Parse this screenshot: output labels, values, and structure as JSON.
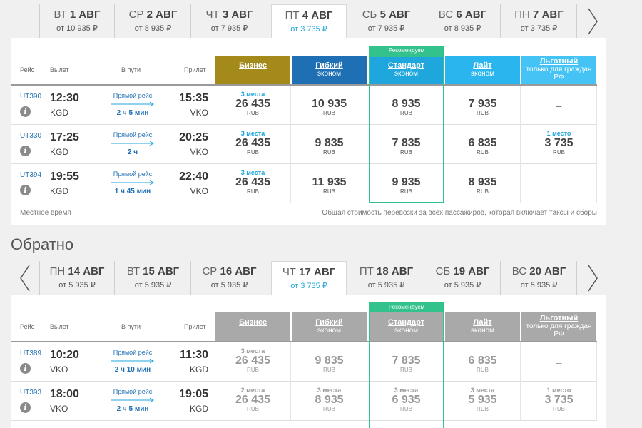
{
  "outbound": {
    "dates": [
      {
        "dow": "ВТ",
        "day": "1",
        "month": "АВГ",
        "price": "от 10 935 ₽"
      },
      {
        "dow": "СР",
        "day": "2",
        "month": "АВГ",
        "price": "от 8 935 ₽"
      },
      {
        "dow": "ЧТ",
        "day": "3",
        "month": "АВГ",
        "price": "от 7 935 ₽"
      },
      {
        "dow": "ПТ",
        "day": "4",
        "month": "АВГ",
        "price": "от 3 735 ₽"
      },
      {
        "dow": "СБ",
        "day": "5",
        "month": "АВГ",
        "price": "от 7 935 ₽"
      },
      {
        "dow": "ВС",
        "day": "6",
        "month": "АВГ",
        "price": "от 8 935 ₽"
      },
      {
        "dow": "ПН",
        "day": "7",
        "month": "АВГ",
        "price": "от 3 735 ₽"
      }
    ],
    "columns": {
      "flight": "Рейс",
      "departure": "Вылет",
      "enroute": "В пути",
      "arrival": "Прилет"
    },
    "fares": [
      {
        "name": "Бизнес",
        "sub": ""
      },
      {
        "name": "Гибкий",
        "sub": "эконом"
      },
      {
        "name": "Стандарт",
        "sub": "эконом"
      },
      {
        "name": "Лайт",
        "sub": "эконом"
      },
      {
        "name": "Льготный",
        "sub": "только для граждан РФ"
      }
    ],
    "recommended": "Рекомендуем",
    "flights": [
      {
        "no": "UT390",
        "dep_time": "12:30",
        "dep_code": "KGD",
        "direct": "Прямой рейс",
        "duration": "2 ч 5 мин",
        "arr_time": "15:35",
        "arr_code": "VKO",
        "prices": [
          {
            "seats": "3 места",
            "price": "26 435",
            "cur": "RUB"
          },
          {
            "seats": "",
            "price": "10 935",
            "cur": "RUB"
          },
          {
            "seats": "",
            "price": "8 935",
            "cur": "RUB"
          },
          {
            "seats": "",
            "price": "7 935",
            "cur": "RUB"
          },
          {
            "seats": "",
            "price": "–",
            "cur": ""
          }
        ]
      },
      {
        "no": "UT330",
        "dep_time": "17:25",
        "dep_code": "KGD",
        "direct": "Прямой рейс",
        "duration": "2 ч",
        "arr_time": "20:25",
        "arr_code": "VKO",
        "prices": [
          {
            "seats": "3 места",
            "price": "26 435",
            "cur": "RUB"
          },
          {
            "seats": "",
            "price": "9 835",
            "cur": "RUB"
          },
          {
            "seats": "",
            "price": "7 835",
            "cur": "RUB"
          },
          {
            "seats": "",
            "price": "6 835",
            "cur": "RUB"
          },
          {
            "seats": "1 место",
            "price": "3 735",
            "cur": "RUB"
          }
        ]
      },
      {
        "no": "UT394",
        "dep_time": "19:55",
        "dep_code": "KGD",
        "direct": "Прямой рейс",
        "duration": "1 ч 45 мин",
        "arr_time": "22:40",
        "arr_code": "VKO",
        "prices": [
          {
            "seats": "3 места",
            "price": "26 435",
            "cur": "RUB"
          },
          {
            "seats": "",
            "price": "11 935",
            "cur": "RUB"
          },
          {
            "seats": "",
            "price": "9 935",
            "cur": "RUB"
          },
          {
            "seats": "",
            "price": "8 935",
            "cur": "RUB"
          },
          {
            "seats": "",
            "price": "–",
            "cur": ""
          }
        ]
      }
    ],
    "footer_left": "Местное время",
    "footer_right": "Общая стоимость перевозки за всех пассажиров, которая включает таксы и сборы"
  },
  "return_title": "Обратно",
  "return": {
    "dates": [
      {
        "dow": "ПН",
        "day": "14",
        "month": "АВГ",
        "price": "от 5 935 ₽"
      },
      {
        "dow": "ВТ",
        "day": "15",
        "month": "АВГ",
        "price": "от 5 935 ₽"
      },
      {
        "dow": "СР",
        "day": "16",
        "month": "АВГ",
        "price": "от 5 935 ₽"
      },
      {
        "dow": "ЧТ",
        "day": "17",
        "month": "АВГ",
        "price": "от 3 735 ₽"
      },
      {
        "dow": "ПТ",
        "day": "18",
        "month": "АВГ",
        "price": "от 5 935 ₽"
      },
      {
        "dow": "СБ",
        "day": "19",
        "month": "АВГ",
        "price": "от 5 935 ₽"
      },
      {
        "dow": "ВС",
        "day": "20",
        "month": "АВГ",
        "price": "от 5 935 ₽"
      }
    ],
    "columns": {
      "flight": "Рейс",
      "departure": "Вылет",
      "enroute": "В пути",
      "arrival": "Прилет"
    },
    "fares": [
      {
        "name": "Бизнес",
        "sub": ""
      },
      {
        "name": "Гибкий",
        "sub": "эконом"
      },
      {
        "name": "Стандарт",
        "sub": "эконом"
      },
      {
        "name": "Лайт",
        "sub": "эконом"
      },
      {
        "name": "Льготный",
        "sub": "только для граждан РФ"
      }
    ],
    "recommended": "Рекомендуем",
    "flights": [
      {
        "no": "UT389",
        "dep_time": "10:20",
        "dep_code": "VKO",
        "direct": "Прямой рейс",
        "duration": "2 ч 10 мин",
        "arr_time": "11:30",
        "arr_code": "KGD",
        "prices": [
          {
            "seats": "3 места",
            "price": "26 435",
            "cur": "RUB"
          },
          {
            "seats": "",
            "price": "9 835",
            "cur": "RUB"
          },
          {
            "seats": "",
            "price": "7 835",
            "cur": "RUB"
          },
          {
            "seats": "",
            "price": "6 835",
            "cur": "RUB"
          },
          {
            "seats": "",
            "price": "–",
            "cur": ""
          }
        ]
      },
      {
        "no": "UT393",
        "dep_time": "18:00",
        "dep_code": "VKO",
        "direct": "Прямой рейс",
        "duration": "2 ч 5 мин",
        "arr_time": "19:05",
        "arr_code": "KGD",
        "prices": [
          {
            "seats": "2 места",
            "price": "26 435",
            "cur": "RUB"
          },
          {
            "seats": "3 места",
            "price": "8 935",
            "cur": "RUB"
          },
          {
            "seats": "3 места",
            "price": "6 935",
            "cur": "RUB"
          },
          {
            "seats": "3 места",
            "price": "5 935",
            "cur": "RUB"
          },
          {
            "seats": "1 место",
            "price": "3 735",
            "cur": "RUB"
          }
        ]
      }
    ]
  },
  "colors": {
    "business": "#a48a1a",
    "flex": "#1f6fb4",
    "standard": "#1fa6dc",
    "lite": "#2bb5ef",
    "lgot": "#45c3f4",
    "recommended": "#33c28c",
    "inactive": "#a9a9a9"
  },
  "icons": {
    "prev": "chevron-left-icon",
    "next": "chevron-right-icon",
    "info": "info-icon",
    "arrow": "right-arrow-icon"
  }
}
